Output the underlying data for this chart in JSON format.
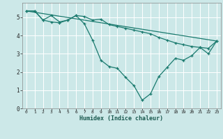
{
  "title": "",
  "xlabel": "Humidex (Indice chaleur)",
  "ylabel": "",
  "background_color": "#cce8e8",
  "grid_color": "#ffffff",
  "line_color": "#1a7a6e",
  "xlim": [
    -0.5,
    23.5
  ],
  "ylim": [
    0,
    5.8
  ],
  "yticks": [
    0,
    1,
    2,
    3,
    4,
    5
  ],
  "xticks": [
    0,
    1,
    2,
    3,
    4,
    5,
    6,
    7,
    8,
    9,
    10,
    11,
    12,
    13,
    14,
    15,
    16,
    17,
    18,
    19,
    20,
    21,
    22,
    23
  ],
  "line1_x": [
    0,
    1,
    2,
    3,
    4,
    5,
    6,
    7,
    8,
    9,
    10,
    11,
    12,
    13,
    14,
    15,
    16,
    17,
    18,
    19,
    20,
    21,
    22,
    23
  ],
  "line1_y": [
    5.35,
    5.35,
    4.85,
    5.1,
    4.75,
    4.85,
    5.1,
    5.05,
    4.85,
    4.9,
    4.6,
    4.5,
    4.4,
    4.3,
    4.2,
    4.1,
    3.9,
    3.75,
    3.6,
    3.5,
    3.4,
    3.35,
    3.3,
    3.7
  ],
  "line2_x": [
    0,
    1,
    2,
    3,
    4,
    5,
    6,
    7,
    8,
    9,
    10,
    11,
    12,
    13,
    14,
    15,
    16,
    17,
    18,
    19,
    20,
    21,
    22,
    23
  ],
  "line2_y": [
    5.35,
    5.35,
    4.85,
    4.75,
    4.7,
    4.85,
    5.1,
    4.65,
    3.75,
    2.65,
    2.3,
    2.2,
    1.7,
    1.25,
    0.45,
    0.8,
    1.75,
    2.25,
    2.75,
    2.65,
    2.9,
    3.35,
    3.0,
    3.7
  ],
  "line3_x": [
    0,
    23
  ],
  "line3_y": [
    5.35,
    3.7
  ],
  "xlabel_fontsize": 6.0,
  "xtick_fontsize": 4.5,
  "ytick_fontsize": 5.5
}
